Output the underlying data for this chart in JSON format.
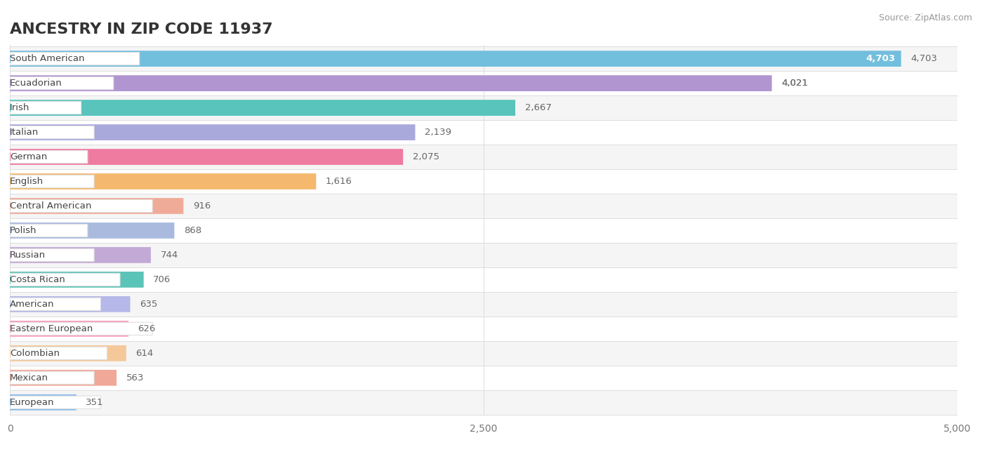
{
  "title": "ANCESTRY IN ZIP CODE 11937",
  "source": "Source: ZipAtlas.com",
  "categories": [
    "South American",
    "Ecuadorian",
    "Irish",
    "Italian",
    "German",
    "English",
    "Central American",
    "Polish",
    "Russian",
    "Costa Rican",
    "American",
    "Eastern European",
    "Colombian",
    "Mexican",
    "European"
  ],
  "values": [
    4703,
    4021,
    2667,
    2139,
    2075,
    1616,
    916,
    868,
    744,
    706,
    635,
    626,
    614,
    563,
    351
  ],
  "colors": [
    "#72bedd",
    "#b095d0",
    "#58c4bc",
    "#a9a9dc",
    "#f07ba0",
    "#f4b96e",
    "#f0ab98",
    "#a9bade",
    "#c3a9d6",
    "#5ac4b8",
    "#b5b8e8",
    "#f79aba",
    "#f5c89a",
    "#f0a898",
    "#88b8e8"
  ],
  "xlim": [
    0,
    5000
  ],
  "xticks": [
    0,
    2500,
    5000
  ],
  "bg_color": "#ffffff",
  "row_colors": [
    "#f5f5f5",
    "#ffffff"
  ],
  "pill_color": "#ffffff",
  "pill_edge_color": "#e0e0e0",
  "value_color": "#666666",
  "label_color": "#444444",
  "grid_color": "#dddddd",
  "title_color": "#333333",
  "source_color": "#999999"
}
